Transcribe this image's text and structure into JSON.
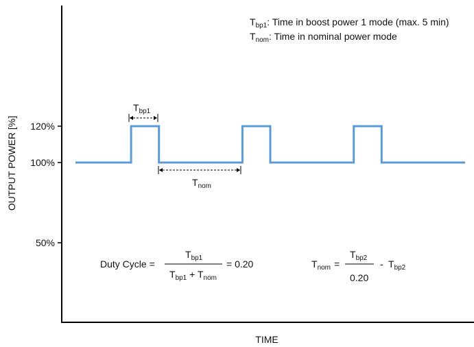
{
  "chart_data": {
    "type": "line",
    "title": "",
    "xlabel": "TIME",
    "ylabel": "OUTPUT POWER [%]",
    "y_ticks": [
      "120%",
      "100%",
      "50%"
    ],
    "y_tick_values": [
      120,
      100,
      50
    ],
    "ylim": [
      30,
      170
    ],
    "x_ticks_shown": false,
    "grid": false,
    "line_color": "#5b9bd5",
    "series": [
      {
        "values_desc": "square wave between nominal and boost power",
        "x": [
          0,
          10,
          10,
          15,
          15,
          30,
          30,
          35,
          35,
          50,
          50,
          55,
          55,
          70
        ],
        "y": [
          100,
          100,
          120,
          120,
          100,
          100,
          120,
          120,
          100,
          100,
          120,
          120,
          100,
          100
        ]
      }
    ],
    "legend_text": {
      "line1": {
        "sym": "T",
        "sub": "bp1",
        "text": ": Time in boost power 1 mode (max. 5 min)"
      },
      "line2": {
        "sym": "T",
        "sub": "nom",
        "text": ": Time in nominal power mode"
      }
    },
    "annotations": {
      "tbp1": {
        "sym": "T",
        "sub": "bp1"
      },
      "tnom": {
        "sym": "T",
        "sub": "nom"
      }
    },
    "formula_duty": {
      "lhs": "Duty Cycle =",
      "num": {
        "sym": "T",
        "sub": "bp1"
      },
      "den1": {
        "sym": "T",
        "sub": "bp1"
      },
      "den_plus": " + ",
      "den2": {
        "sym": "T",
        "sub": "nom"
      },
      "rhs": "= 0.20"
    },
    "formula_tnom": {
      "lhs": {
        "sym": "T",
        "sub": "nom"
      },
      "eq": "=",
      "num": {
        "sym": "T",
        "sub": "bp2"
      },
      "den": "0.20",
      "minus": "-",
      "tail": {
        "sym": "T",
        "sub": "bp2"
      }
    }
  }
}
